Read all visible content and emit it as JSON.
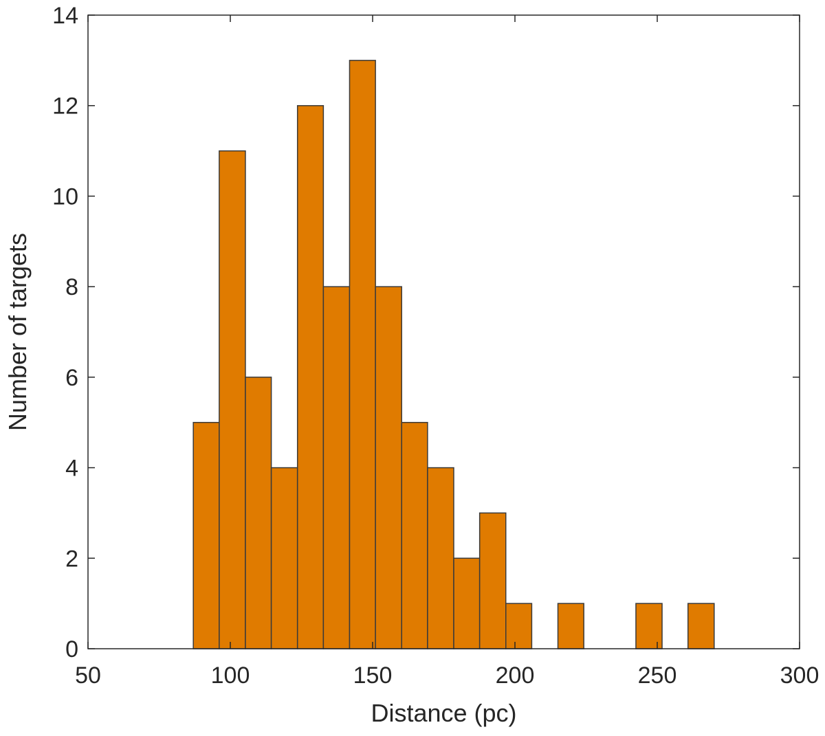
{
  "chart_data": {
    "type": "bar",
    "title": "",
    "xlabel": "Distance (pc)",
    "ylabel": "Number of targets",
    "xlim": [
      50,
      300
    ],
    "ylim": [
      0,
      14
    ],
    "xticks": [
      50,
      100,
      150,
      200,
      250,
      300
    ],
    "yticks": [
      0,
      2,
      4,
      6,
      8,
      10,
      12,
      14
    ],
    "bin_edges": [
      87,
      96.1,
      105.3,
      114.4,
      123.6,
      132.7,
      141.9,
      151,
      160.2,
      169.3,
      178.5,
      187.6,
      196.8,
      205.9,
      215.1,
      224.2,
      233.4,
      242.5,
      251.7,
      260.8,
      270
    ],
    "values": [
      5,
      11,
      6,
      4,
      12,
      8,
      13,
      8,
      5,
      4,
      2,
      3,
      1,
      0,
      1,
      0,
      0,
      1,
      0,
      1
    ],
    "bar_color": "#e07b00",
    "grid": false
  }
}
